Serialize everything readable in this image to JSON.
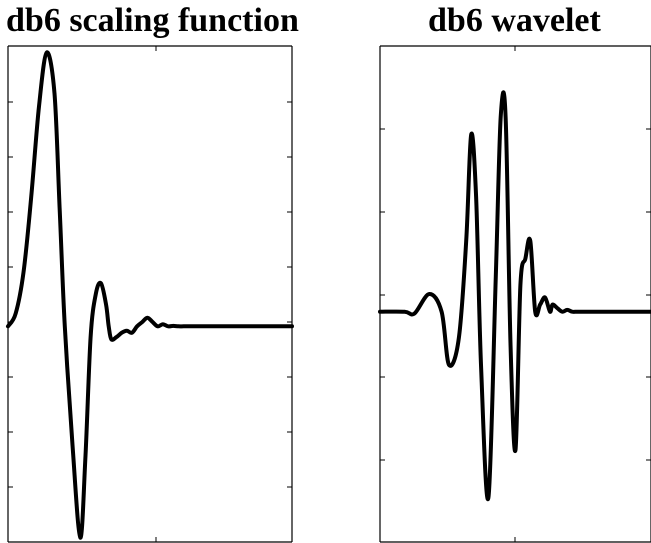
{
  "chart_data": [
    {
      "type": "line",
      "title": "db6 scaling function",
      "xlabel": "",
      "ylabel": "",
      "xlim": [
        0,
        11
      ],
      "ylim": [
        -1.0,
        1.3
      ],
      "grid": false,
      "line_color": "#000000",
      "series": [
        {
          "x": [
            0.0,
            0.3,
            0.6,
            0.9,
            1.2,
            1.5,
            1.8,
            2.0,
            2.2,
            2.5,
            2.8,
            3.0,
            3.2,
            3.4,
            3.6,
            3.8,
            3.9,
            4.0,
            4.2,
            4.4,
            4.6,
            4.8,
            5.0,
            5.2,
            5.4,
            5.6,
            5.8,
            6.0,
            6.2,
            6.4,
            6.6,
            6.8,
            7.0,
            7.5,
            8.0,
            9.0,
            10.0,
            11.0
          ],
          "y": [
            0.0,
            0.06,
            0.25,
            0.6,
            1.02,
            1.27,
            1.08,
            0.55,
            0.0,
            -0.55,
            -0.98,
            -0.6,
            -0.05,
            0.15,
            0.2,
            0.1,
            0.0,
            -0.06,
            -0.05,
            -0.03,
            -0.02,
            -0.03,
            0.0,
            0.02,
            0.04,
            0.02,
            0.0,
            0.01,
            0.0,
            0.002,
            0.0,
            0.0,
            0.0,
            0.0,
            0.0,
            0.0,
            0.0,
            0.0
          ]
        }
      ]
    },
    {
      "type": "line",
      "title": "db6 wavelet",
      "xlabel": "",
      "ylabel": "",
      "xlim": [
        -5,
        6
      ],
      "ylim": [
        -1.3,
        1.5
      ],
      "grid": false,
      "line_color": "#000000",
      "series": [
        {
          "x": [
            -5.0,
            -4.0,
            -3.6,
            -3.0,
            -2.5,
            -2.2,
            -1.8,
            -1.5,
            -1.3,
            -1.1,
            -0.9,
            -0.6,
            -0.3,
            -0.1,
            0.1,
            0.3,
            0.5,
            0.7,
            0.9,
            1.1,
            1.3,
            1.5,
            1.7,
            1.9,
            2.0,
            2.2,
            2.4,
            2.6,
            2.8,
            3.0,
            3.3,
            3.6,
            4.0,
            5.0,
            6.0
          ],
          "y": [
            0.0,
            0.0,
            -0.01,
            0.1,
            0.0,
            -0.3,
            -0.15,
            0.4,
            1.0,
            0.65,
            -0.3,
            -1.05,
            0.2,
            1.1,
            1.1,
            -0.2,
            -0.78,
            0.15,
            0.3,
            0.4,
            0.0,
            0.04,
            0.08,
            0.0,
            0.04,
            0.02,
            0.0,
            0.01,
            0.0,
            0.0,
            0.0,
            0.0,
            0.0,
            0.0,
            0.0
          ]
        }
      ]
    }
  ]
}
